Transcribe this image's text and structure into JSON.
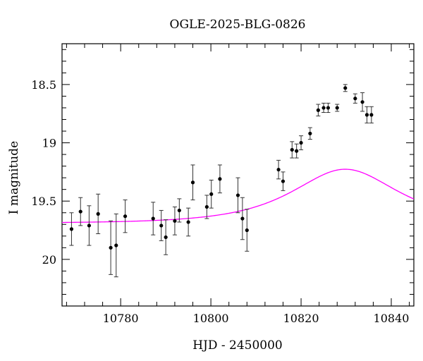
{
  "chart_data": {
    "type": "scatter",
    "title": "OGLE-2025-BLG-0826",
    "xlabel": "HJD - 2450000",
    "ylabel": "I magnitude",
    "xlim": [
      10767,
      10845
    ],
    "ylim": [
      20.4,
      18.15
    ],
    "y_inverted": true,
    "x_ticks_major": [
      10780,
      10800,
      10820,
      10840
    ],
    "x_ticks_minor_step": 4,
    "y_ticks_major": [
      18.5,
      19,
      19.5,
      20
    ],
    "y_tick_labels": [
      "18.5",
      "19",
      "19.5",
      "20"
    ],
    "y_ticks_minor_step": 0.1,
    "grid": false,
    "series": [
      {
        "kind": "points_with_errorbars",
        "color": "#000000",
        "points": [
          {
            "x": 10769.1,
            "y": 19.74,
            "err": 0.14
          },
          {
            "x": 10771.1,
            "y": 19.59,
            "err": 0.12
          },
          {
            "x": 10773.0,
            "y": 19.71,
            "err": 0.17
          },
          {
            "x": 10775.0,
            "y": 19.61,
            "err": 0.17
          },
          {
            "x": 10777.8,
            "y": 19.9,
            "err": 0.23
          },
          {
            "x": 10779.0,
            "y": 19.88,
            "err": 0.27
          },
          {
            "x": 10781.0,
            "y": 19.63,
            "err": 0.14
          },
          {
            "x": 10787.2,
            "y": 19.65,
            "err": 0.14
          },
          {
            "x": 10789.0,
            "y": 19.71,
            "err": 0.13
          },
          {
            "x": 10790.0,
            "y": 19.81,
            "err": 0.15
          },
          {
            "x": 10792.0,
            "y": 19.67,
            "err": 0.12
          },
          {
            "x": 10793.0,
            "y": 19.58,
            "err": 0.1
          },
          {
            "x": 10795.0,
            "y": 19.68,
            "err": 0.12
          },
          {
            "x": 10796.0,
            "y": 19.34,
            "err": 0.15
          },
          {
            "x": 10799.1,
            "y": 19.55,
            "err": 0.1
          },
          {
            "x": 10800.1,
            "y": 19.44,
            "err": 0.12
          },
          {
            "x": 10802.0,
            "y": 19.31,
            "err": 0.12
          },
          {
            "x": 10806.0,
            "y": 19.45,
            "err": 0.15
          },
          {
            "x": 10807.0,
            "y": 19.65,
            "err": 0.18
          },
          {
            "x": 10808.0,
            "y": 19.75,
            "err": 0.18
          },
          {
            "x": 10815.0,
            "y": 19.23,
            "err": 0.08
          },
          {
            "x": 10816.0,
            "y": 19.33,
            "err": 0.08
          },
          {
            "x": 10818.0,
            "y": 19.06,
            "err": 0.07
          },
          {
            "x": 10819.0,
            "y": 19.07,
            "err": 0.06
          },
          {
            "x": 10820.0,
            "y": 19.0,
            "err": 0.06
          },
          {
            "x": 10822.0,
            "y": 18.92,
            "err": 0.05
          },
          {
            "x": 10823.8,
            "y": 18.72,
            "err": 0.05
          },
          {
            "x": 10825.0,
            "y": 18.7,
            "err": 0.04
          },
          {
            "x": 10826.0,
            "y": 18.7,
            "err": 0.04
          },
          {
            "x": 10828.0,
            "y": 18.7,
            "err": 0.03
          },
          {
            "x": 10829.8,
            "y": 18.53,
            "err": 0.03
          },
          {
            "x": 10832.0,
            "y": 18.62,
            "err": 0.04
          },
          {
            "x": 10833.6,
            "y": 18.65,
            "err": 0.08
          },
          {
            "x": 10834.6,
            "y": 18.76,
            "err": 0.07
          },
          {
            "x": 10835.6,
            "y": 18.76,
            "err": 0.07
          }
        ]
      },
      {
        "kind": "model_curve",
        "color": "#ff00ff",
        "baseline_mag": 19.69,
        "t0": 10829.8,
        "tE": 16.0,
        "u0": 0.8
      }
    ]
  }
}
